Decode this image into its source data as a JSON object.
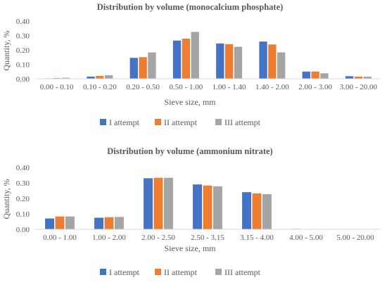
{
  "chart_data": [
    {
      "type": "bar",
      "title": "Distribution by volume (monocalcium phosphate)",
      "xlabel": "Sieve size, mm",
      "ylabel": "Quantity, %",
      "ylim": [
        0,
        0.4
      ],
      "yticks": [
        "0.00",
        "0.10",
        "0.20",
        "0.30",
        "0.40"
      ],
      "grid": false,
      "legend_position": "bottom",
      "categories": [
        "0.00 - 0.10",
        "0.10 - 0.20",
        "0.20 - 0.50",
        "0.50 - 1.00",
        "1.00 - 1.40",
        "1.40 - 2.00",
        "2.00 - 3.00",
        "3.00 - 20.00"
      ],
      "series": [
        {
          "name": "I attempt",
          "color": "#4472C4",
          "values": [
            0.003,
            0.015,
            0.145,
            0.265,
            0.245,
            0.258,
            0.05,
            0.018
          ]
        },
        {
          "name": "II attempt",
          "color": "#ED7D31",
          "values": [
            0.005,
            0.02,
            0.15,
            0.278,
            0.24,
            0.238,
            0.05,
            0.015
          ]
        },
        {
          "name": "III attempt",
          "color": "#A5A5A5",
          "values": [
            0.007,
            0.025,
            0.183,
            0.325,
            0.222,
            0.183,
            0.038,
            0.015
          ]
        }
      ]
    },
    {
      "type": "bar",
      "title": "Distribution by volume (ammonium nitrate)",
      "xlabel": "Sieve size, mm",
      "ylabel": "Quantity, %",
      "ylim": [
        0,
        0.4
      ],
      "yticks": [
        "0.00",
        "0.10",
        "0.20",
        "0.30",
        "0.40"
      ],
      "grid": false,
      "legend_position": "bottom",
      "categories": [
        "0.00 - 1.00",
        "1.00 - 2.00",
        "2.00 - 2.50",
        "2.50 - 3.15",
        "3.15 - 4.00",
        "4.00 - 5.00",
        "5.00 - 20.00"
      ],
      "series": [
        {
          "name": "I attempt",
          "color": "#4472C4",
          "values": [
            0.07,
            0.075,
            0.33,
            0.29,
            0.24,
            0.003,
            0.0
          ]
        },
        {
          "name": "II attempt",
          "color": "#ED7D31",
          "values": [
            0.083,
            0.078,
            0.333,
            0.283,
            0.232,
            0.0,
            0.0
          ]
        },
        {
          "name": "III attempt",
          "color": "#A5A5A5",
          "values": [
            0.083,
            0.08,
            0.333,
            0.278,
            0.227,
            0.0,
            0.0
          ]
        }
      ]
    }
  ]
}
